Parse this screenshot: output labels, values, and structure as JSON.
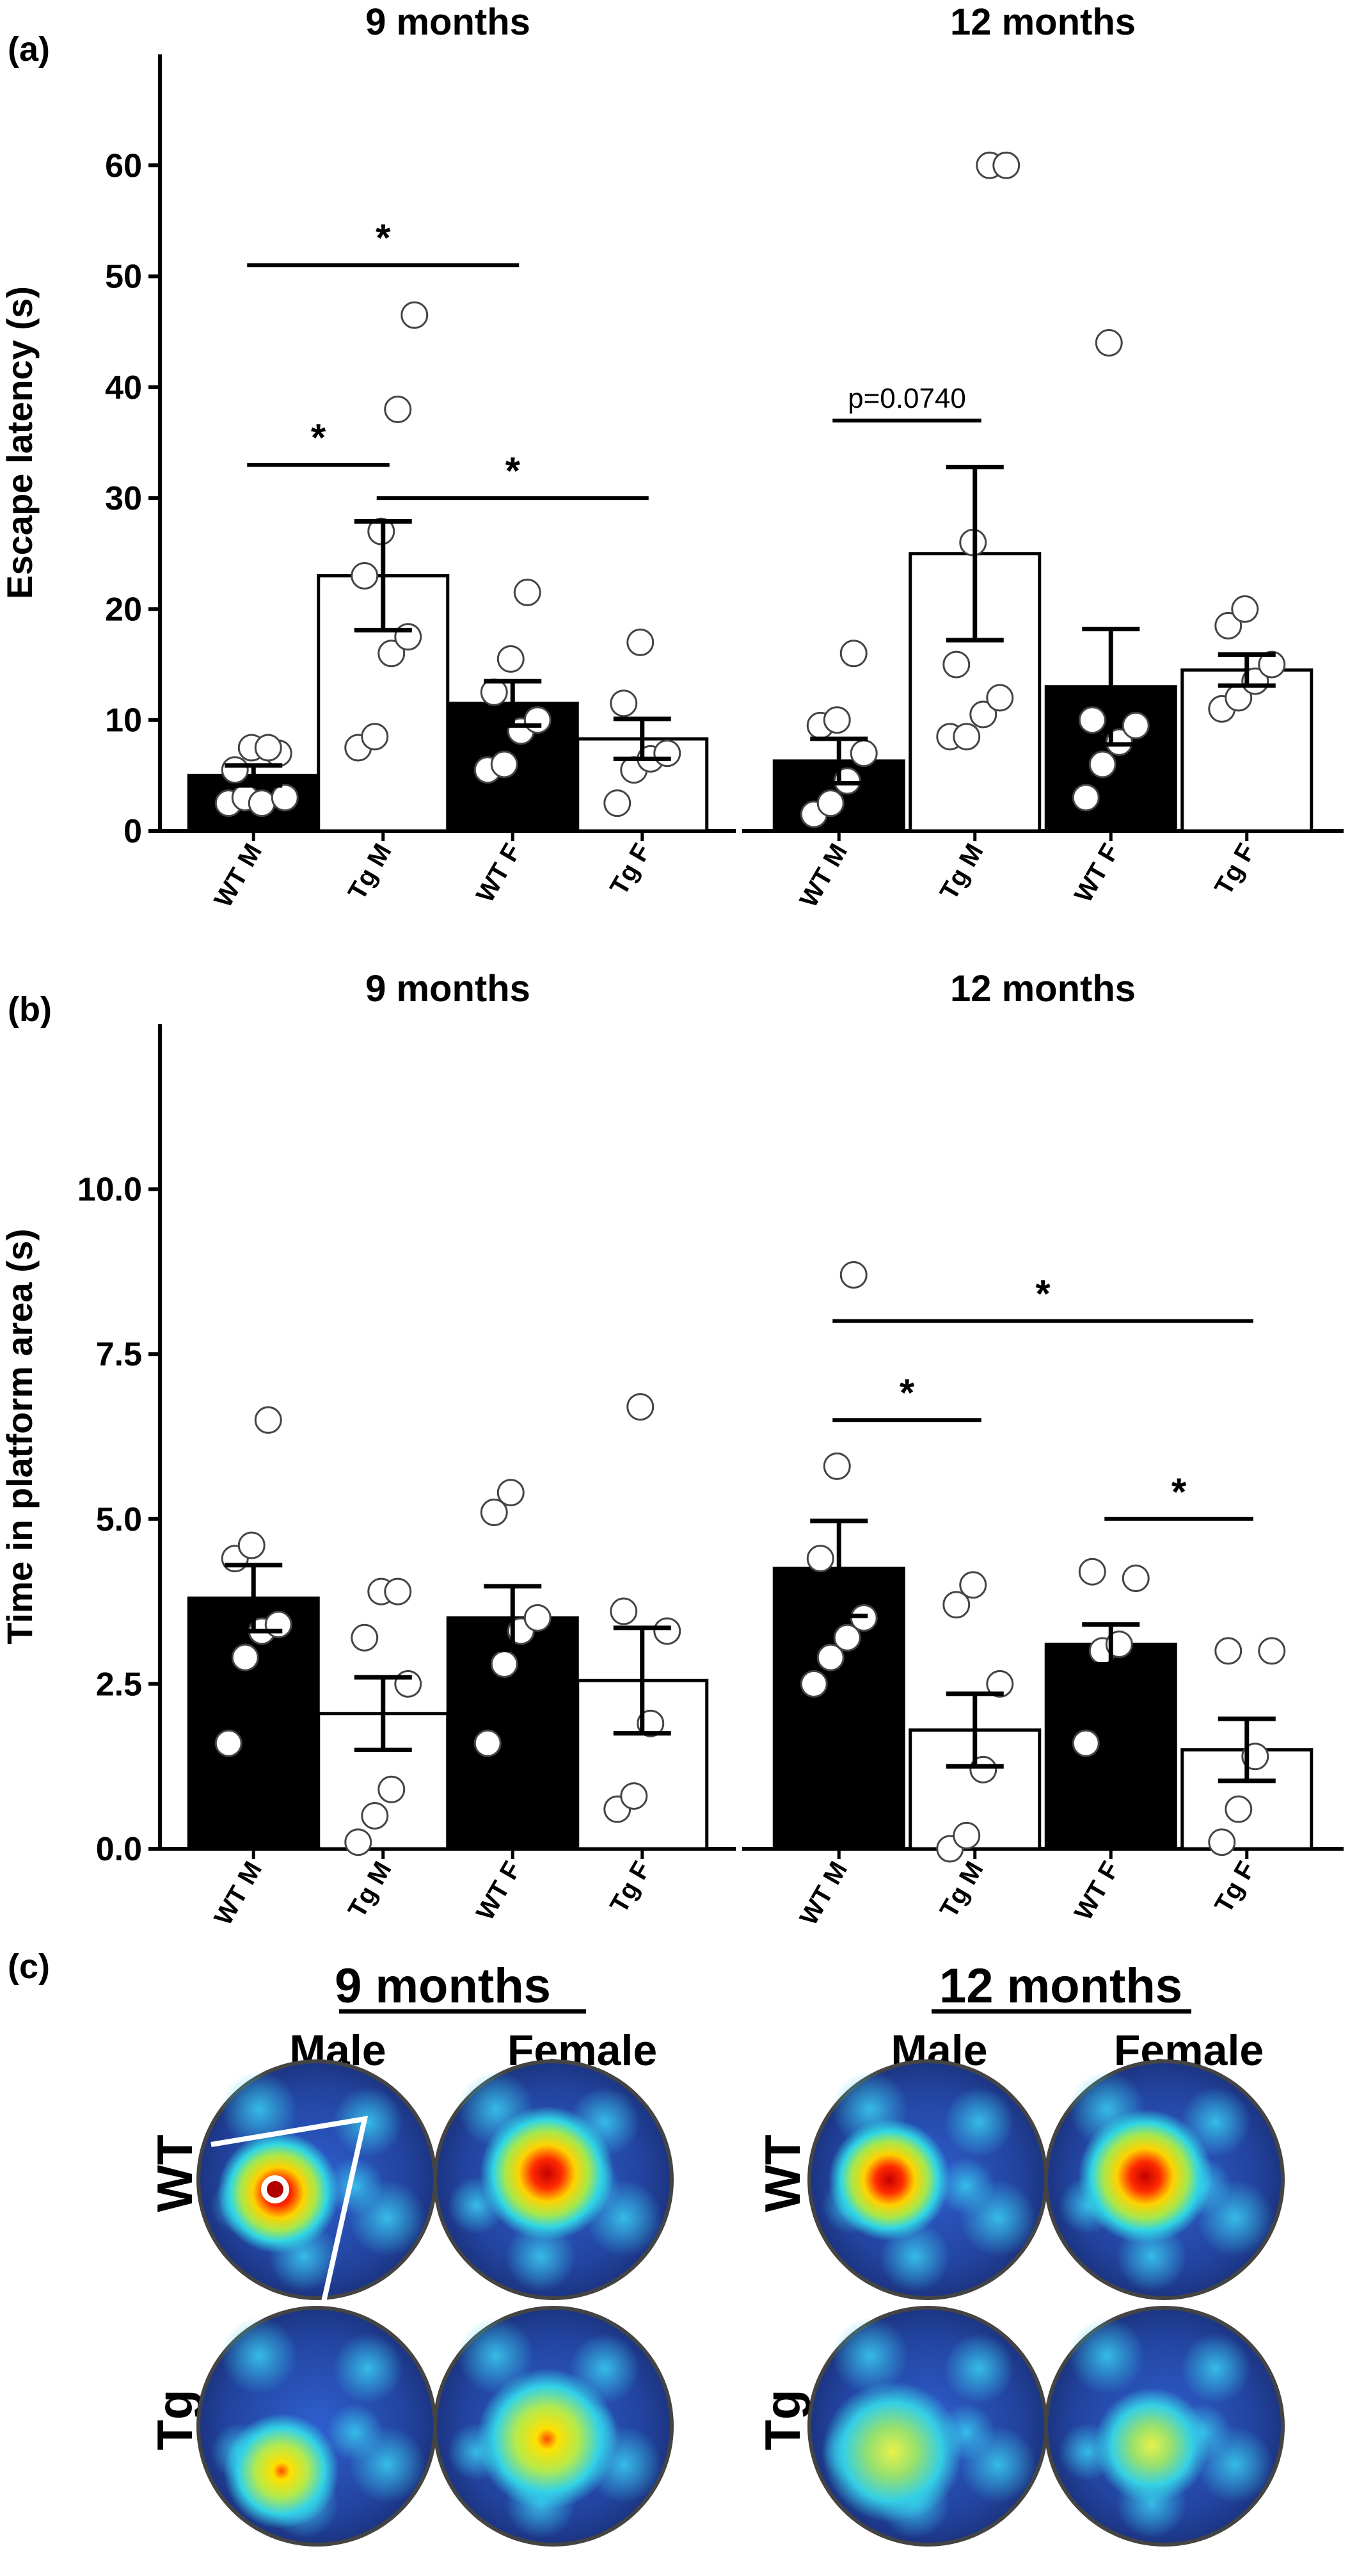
{
  "panels": {
    "a_label": "(a)",
    "b_label": "(b)",
    "c_label": "(c)"
  },
  "colors": {
    "wt_fill": "#000000",
    "tg_fill": "#ffffff",
    "axis": "#000000",
    "dot_fill": "#ffffff",
    "dot_stroke": "#444444"
  },
  "chart_data": [
    {
      "type": "bar",
      "panel": "(a)",
      "ylabel": "Escape latency (s)",
      "ylim": [
        0,
        70
      ],
      "yticks": [
        0,
        10,
        20,
        30,
        40,
        50,
        60
      ],
      "groups": [
        {
          "title": "9 months",
          "categories": [
            "WT M",
            "Tg M",
            "WT F",
            "Tg F"
          ],
          "values": [
            5.0,
            23.0,
            11.5,
            8.3
          ],
          "sem": [
            0.9,
            4.9,
            2.0,
            1.8
          ],
          "points": [
            [
              2.5,
              3.0,
              2.5,
              7.0,
              5.5,
              7.5,
              7.5,
              3.0
            ],
            [
              7.5,
              8.5,
              16.0,
              17.5,
              23.0,
              27.0,
              38.0,
              46.5
            ],
            [
              5.5,
              6.0,
              9.0,
              10.0,
              12.5,
              15.5,
              21.5
            ],
            [
              2.5,
              5.5,
              6.5,
              7.0,
              11.5,
              17.0
            ]
          ],
          "significance": [
            {
              "from": 0,
              "to": 2,
              "label": "*",
              "y": 51
            },
            {
              "from": 0,
              "to": 1,
              "label": "*",
              "y": 33
            },
            {
              "from": 1,
              "to": 3,
              "label": "*",
              "y": 30
            }
          ]
        },
        {
          "title": "12 months",
          "categories": [
            "WT M",
            "Tg M",
            "WT F",
            "Tg F"
          ],
          "values": [
            6.3,
            25.0,
            13.0,
            14.5
          ],
          "sem": [
            2.0,
            7.8,
            5.2,
            1.4
          ],
          "points": [
            [
              1.5,
              2.5,
              4.5,
              7.0,
              9.5,
              10.0,
              16.0
            ],
            [
              8.5,
              8.5,
              10.5,
              12.0,
              15.0,
              26.0,
              60.0,
              60.0
            ],
            [
              3.0,
              6.0,
              8.0,
              9.5,
              10.0,
              44.0
            ],
            [
              11.0,
              12.0,
              13.5,
              15.0,
              18.5,
              20.0
            ]
          ],
          "significance": [
            {
              "from": 0,
              "to": 1,
              "label": "p=0.0740",
              "y": 37
            }
          ]
        }
      ]
    },
    {
      "type": "bar",
      "panel": "(b)",
      "ylabel": "Time in platform area (s)",
      "ylim": [
        0,
        12.5
      ],
      "yticks": [
        "0.0",
        "2.5",
        "5.0",
        "7.5",
        "10.0"
      ],
      "groups": [
        {
          "title": "9 months",
          "categories": [
            "WT M",
            "Tg M",
            "WT F",
            "Tg F"
          ],
          "values": [
            3.8,
            2.05,
            3.5,
            2.55
          ],
          "sem": [
            0.5,
            0.55,
            0.48,
            0.8
          ],
          "points": [
            [
              1.6,
              2.9,
              3.3,
              3.4,
              4.4,
              4.6,
              6.5
            ],
            [
              0.1,
              0.5,
              0.9,
              2.5,
              3.2,
              3.9,
              3.9
            ],
            [
              1.6,
              2.8,
              3.3,
              3.5,
              5.1,
              5.4
            ],
            [
              0.6,
              0.8,
              1.9,
              3.3,
              3.6,
              6.7
            ]
          ],
          "significance": []
        },
        {
          "title": "12 months",
          "categories": [
            "WT M",
            "Tg M",
            "WT F",
            "Tg F"
          ],
          "values": [
            4.25,
            1.8,
            3.1,
            1.5
          ],
          "sem": [
            0.72,
            0.55,
            0.3,
            0.47
          ],
          "points": [
            [
              2.5,
              2.9,
              3.2,
              3.5,
              4.4,
              5.8,
              8.7
            ],
            [
              0.0,
              0.2,
              1.2,
              2.5,
              3.7,
              4.0
            ],
            [
              1.6,
              3.0,
              3.1,
              4.1,
              4.2
            ],
            [
              0.1,
              0.6,
              1.4,
              3.0,
              3.0
            ]
          ],
          "significance": [
            {
              "from": 0,
              "to": 3,
              "label": "*",
              "y": 8.0
            },
            {
              "from": 0,
              "to": 1,
              "label": "*",
              "y": 6.5
            },
            {
              "from": 2,
              "to": 3,
              "label": "*",
              "y": 5.0
            }
          ]
        }
      ]
    }
  ],
  "heatmaps": {
    "age_titles": [
      "9 months",
      "12 months"
    ],
    "sex_labels": [
      "Male",
      "Female"
    ],
    "genotype_labels": [
      "WT",
      "Tg"
    ],
    "cells": [
      {
        "age": "9 months",
        "sex": "Male",
        "genotype": "WT",
        "intensity": "high",
        "platform_marker": true
      },
      {
        "age": "9 months",
        "sex": "Female",
        "genotype": "WT",
        "intensity": "high",
        "platform_marker": false
      },
      {
        "age": "9 months",
        "sex": "Male",
        "genotype": "Tg",
        "intensity": "medium",
        "platform_marker": false
      },
      {
        "age": "9 months",
        "sex": "Female",
        "genotype": "Tg",
        "intensity": "medium",
        "platform_marker": false
      },
      {
        "age": "12 months",
        "sex": "Male",
        "genotype": "WT",
        "intensity": "high",
        "platform_marker": false
      },
      {
        "age": "12 months",
        "sex": "Female",
        "genotype": "WT",
        "intensity": "high",
        "platform_marker": false
      },
      {
        "age": "12 months",
        "sex": "Male",
        "genotype": "Tg",
        "intensity": "low",
        "platform_marker": false
      },
      {
        "age": "12 months",
        "sex": "Female",
        "genotype": "Tg",
        "intensity": "low",
        "platform_marker": false
      }
    ]
  }
}
